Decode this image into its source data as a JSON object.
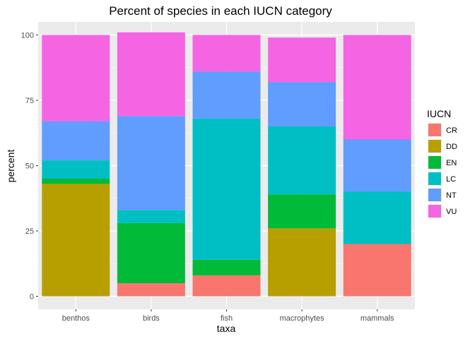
{
  "chart_data": {
    "type": "bar",
    "stacked": true,
    "title": "Percent of species in each IUCN category",
    "xlabel": "taxa",
    "ylabel": "percent",
    "ylim": [
      -5,
      105
    ],
    "yticks": [
      0,
      25,
      50,
      75,
      100
    ],
    "categories": [
      "benthos",
      "birds",
      "fish",
      "macrophytes",
      "mammals"
    ],
    "series": [
      {
        "name": "CR",
        "color": "#F8766D",
        "values": [
          0,
          5,
          8,
          0,
          20
        ]
      },
      {
        "name": "DD",
        "color": "#B79F00",
        "values": [
          43,
          0,
          0,
          26,
          0
        ]
      },
      {
        "name": "EN",
        "color": "#00BA38",
        "values": [
          2,
          23,
          6,
          13,
          0
        ]
      },
      {
        "name": "LC",
        "color": "#00BFC4",
        "values": [
          7,
          5,
          54,
          26,
          20
        ]
      },
      {
        "name": "NT",
        "color": "#619CFF",
        "values": [
          15,
          36,
          18,
          17,
          20
        ]
      },
      {
        "name": "VU",
        "color": "#F564E3",
        "values": [
          33,
          32,
          14,
          17,
          40
        ]
      }
    ],
    "legend": {
      "title": "IUCN",
      "position": "right"
    },
    "grid": true,
    "panel_background": "#EBEBEB"
  }
}
